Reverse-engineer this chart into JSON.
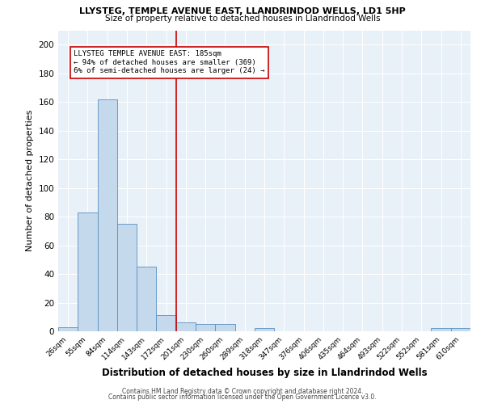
{
  "title1": "LLYSTEG, TEMPLE AVENUE EAST, LLANDRINDOD WELLS, LD1 5HP",
  "title2": "Size of property relative to detached houses in Llandrindod Wells",
  "xlabel": "Distribution of detached houses by size in Llandrindod Wells",
  "ylabel": "Number of detached properties",
  "bin_labels": [
    "26sqm",
    "55sqm",
    "84sqm",
    "114sqm",
    "143sqm",
    "172sqm",
    "201sqm",
    "230sqm",
    "260sqm",
    "289sqm",
    "318sqm",
    "347sqm",
    "376sqm",
    "406sqm",
    "435sqm",
    "464sqm",
    "493sqm",
    "522sqm",
    "552sqm",
    "581sqm",
    "610sqm"
  ],
  "bar_heights": [
    3,
    83,
    162,
    75,
    45,
    11,
    6,
    5,
    5,
    0,
    2,
    0,
    0,
    0,
    0,
    0,
    0,
    0,
    0,
    2,
    2
  ],
  "bar_color": "#c5d9ed",
  "bar_edge_color": "#5a8fc0",
  "vline_color": "#cc0000",
  "annotation_text": "LLYSTEG TEMPLE AVENUE EAST: 185sqm\n← 94% of detached houses are smaller (369)\n6% of semi-detached houses are larger (24) →",
  "annotation_box_color": "white",
  "annotation_box_edge": "#cc0000",
  "footnote1": "Contains HM Land Registry data © Crown copyright and database right 2024.",
  "footnote2": "Contains public sector information licensed under the Open Government Licence v3.0.",
  "ylim": [
    0,
    210
  ],
  "yticks": [
    0,
    20,
    40,
    60,
    80,
    100,
    120,
    140,
    160,
    180,
    200
  ],
  "bg_color": "#e8f0f8",
  "fig_bg_color": "#ffffff"
}
